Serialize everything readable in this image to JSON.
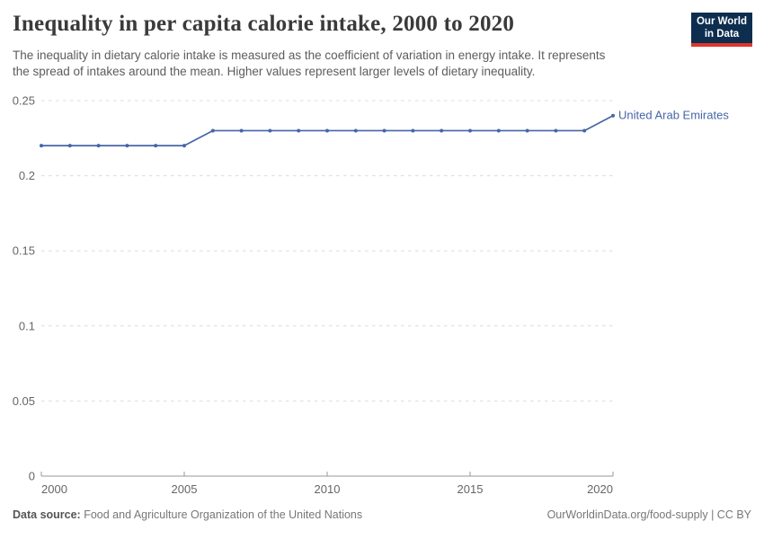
{
  "header": {
    "title": "Inequality in per capita calorie intake, 2000 to 2020",
    "subtitle_line1": "The inequality in dietary calorie intake is measured as the coefficient of variation in energy intake. It represents",
    "subtitle_line2": "the spread of intakes around the mean. Higher values represent larger levels of dietary inequality.",
    "logo": {
      "line1": "Our World",
      "line2": "in Data",
      "bg_color": "#0d2e4f",
      "stripe_color": "#e0352c"
    }
  },
  "chart_data": {
    "type": "line",
    "title": "Inequality in per capita calorie intake, 2000 to 2020",
    "xlabel": "",
    "ylabel": "",
    "x": [
      2000,
      2001,
      2002,
      2003,
      2004,
      2005,
      2006,
      2007,
      2008,
      2009,
      2010,
      2011,
      2012,
      2013,
      2014,
      2015,
      2016,
      2017,
      2018,
      2019,
      2020
    ],
    "series": [
      {
        "name": "United Arab Emirates",
        "color": "#4666a5",
        "values": [
          0.22,
          0.22,
          0.22,
          0.22,
          0.22,
          0.22,
          0.23,
          0.23,
          0.23,
          0.23,
          0.23,
          0.23,
          0.23,
          0.23,
          0.23,
          0.23,
          0.23,
          0.23,
          0.23,
          0.23,
          0.24
        ]
      }
    ],
    "xlim": [
      2000,
      2020
    ],
    "ylim": [
      0,
      0.25
    ],
    "xticks": [
      {
        "value": 2000,
        "label": "2000"
      },
      {
        "value": 2005,
        "label": "2005"
      },
      {
        "value": 2010,
        "label": "2010"
      },
      {
        "value": 2015,
        "label": "2015"
      },
      {
        "value": 2020,
        "label": "2020"
      }
    ],
    "yticks": [
      {
        "value": 0,
        "label": "0"
      },
      {
        "value": 0.05,
        "label": "0.05"
      },
      {
        "value": 0.1,
        "label": "0.1"
      },
      {
        "value": 0.15,
        "label": "0.15"
      },
      {
        "value": 0.2,
        "label": "0.2"
      },
      {
        "value": 0.25,
        "label": "0.25"
      }
    ],
    "grid": "horizontal-dashed",
    "legend_position": "line-end-label"
  },
  "footer": {
    "data_source_label": "Data source:",
    "data_source_value": "Food and Agriculture Organization of the United Nations",
    "credit": "OurWorldinData.org/food-supply | CC BY"
  },
  "colors": {
    "line": "#4666a5",
    "grid": "#dcdcdc",
    "axis": "#999999",
    "tick_text": "#666666",
    "title_text": "#3a3a3a",
    "subtitle_text": "#5c5c5c"
  }
}
